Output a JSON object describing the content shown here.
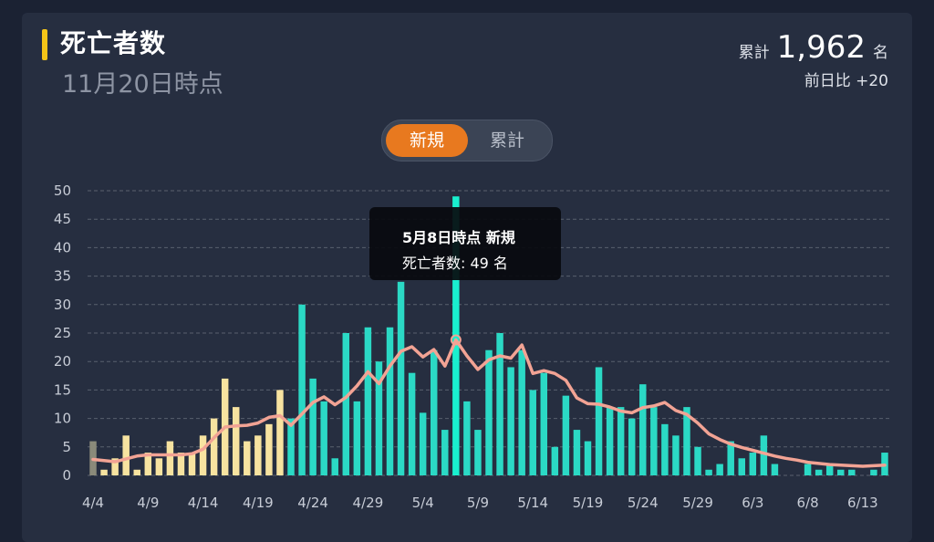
{
  "header": {
    "title": "死亡者数",
    "subtitle": "11月20日時点",
    "total_label": "累計",
    "total_value": "1,962",
    "total_unit": "名",
    "diff_text": "前日比 +20"
  },
  "toggle": {
    "active_label": "新規",
    "inactive_label": "累計"
  },
  "tooltip": {
    "title": "5月8日時点 新規",
    "body": "死亡者数: 49 名"
  },
  "colors": {
    "accent": "#f5c518",
    "pale_bar": "#f7e3a0",
    "teal_bar": "#2bd9c5",
    "highlight_bar": "#19f0cf",
    "trend_line": "#f2a394",
    "gray_bar": "#8a8a7a"
  },
  "chart_data": {
    "type": "bar",
    "ylim": [
      0,
      50
    ],
    "yticks": [
      0,
      5,
      10,
      15,
      20,
      25,
      30,
      35,
      40,
      45,
      50
    ],
    "xtick_labels": [
      "4/4",
      "4/9",
      "4/14",
      "4/19",
      "4/24",
      "4/29",
      "5/4",
      "5/9",
      "5/14",
      "5/19",
      "5/24",
      "5/29",
      "6/3",
      "6/8",
      "6/13"
    ],
    "series": [
      {
        "values": [
          6,
          1,
          3,
          7,
          1,
          4,
          3,
          6,
          4,
          4,
          7,
          10,
          17,
          12,
          6,
          7,
          9,
          15,
          10,
          30,
          17,
          13,
          3,
          25,
          13,
          26,
          20,
          26,
          34,
          18,
          11,
          22,
          8,
          49,
          13,
          8,
          22,
          25,
          19,
          22,
          15,
          18,
          5,
          14,
          8,
          6,
          19,
          12,
          12,
          10,
          16,
          12,
          9,
          7,
          12,
          5,
          1,
          2,
          6,
          3,
          4,
          7,
          2,
          0,
          0,
          2,
          1,
          2,
          1,
          1,
          0,
          1,
          4
        ]
      },
      {
        "values": [
          2.8,
          2.6,
          2.4,
          2.9,
          3.4,
          3.6,
          3.6,
          3.6,
          3.6,
          3.8,
          4.6,
          6.6,
          8.5,
          8.7,
          8.8,
          9.2,
          10.2,
          10.5,
          8.8,
          10.8,
          12.8,
          13.8,
          12.4,
          13.7,
          15.7,
          18.2,
          16.1,
          19.2,
          21.8,
          22.6,
          20.8,
          22.1,
          19.2,
          23.8,
          21.0,
          18.6,
          20.3,
          21.0,
          20.6,
          22.9,
          17.9,
          18.4,
          17.9,
          16.7,
          13.6,
          12.6,
          12.5,
          12.0,
          11.3,
          11.0,
          11.9,
          12.2,
          12.8,
          11.4,
          10.7,
          9.2,
          7.3,
          6.3,
          5.5,
          4.9,
          4.4,
          3.9,
          3.4,
          3.0,
          2.7,
          2.3,
          2.1,
          1.9,
          1.8,
          1.7,
          1.6,
          1.7,
          1.8
        ]
      }
    ],
    "grid": true
  }
}
